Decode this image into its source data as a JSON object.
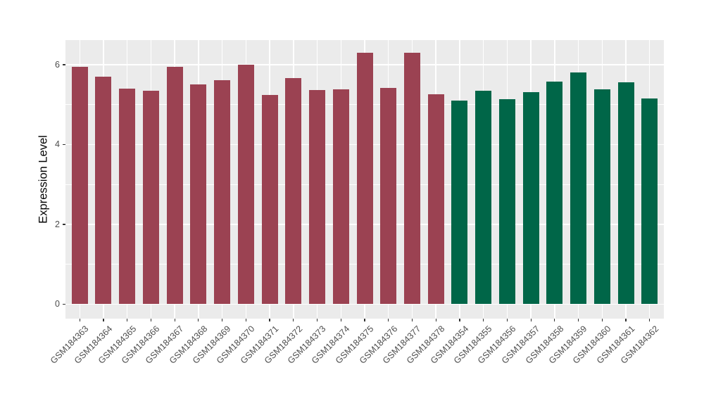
{
  "chart_data": {
    "type": "bar",
    "title": "",
    "xlabel": "",
    "ylabel": "Expression Level",
    "categories": [
      "GSM184363",
      "GSM184364",
      "GSM184365",
      "GSM184366",
      "GSM184367",
      "GSM184368",
      "GSM184369",
      "GSM184370",
      "GSM184371",
      "GSM184372",
      "GSM184373",
      "GSM184374",
      "GSM184375",
      "GSM184376",
      "GSM184377",
      "GSM184378",
      "GSM184354",
      "GSM184355",
      "GSM184356",
      "GSM184357",
      "GSM184358",
      "GSM184359",
      "GSM184360",
      "GSM184361",
      "GSM184362"
    ],
    "values": [
      5.95,
      5.7,
      5.4,
      5.35,
      5.95,
      5.5,
      5.62,
      6.0,
      5.24,
      5.67,
      5.37,
      5.38,
      6.3,
      5.42,
      6.3,
      5.26,
      5.1,
      5.34,
      5.14,
      5.31,
      5.57,
      5.81,
      5.39,
      5.56,
      5.16
    ],
    "groups": [
      "maroon",
      "maroon",
      "maroon",
      "maroon",
      "maroon",
      "maroon",
      "maroon",
      "maroon",
      "maroon",
      "maroon",
      "maroon",
      "maroon",
      "maroon",
      "maroon",
      "maroon",
      "maroon",
      "green",
      "green",
      "green",
      "green",
      "green",
      "green",
      "green",
      "green",
      "green"
    ],
    "group_colors": {
      "maroon": "#9B4252",
      "green": "#006648"
    },
    "series": [
      {
        "name": "GSM184363-GSM184378",
        "color": "#9B4252",
        "count": 16
      },
      {
        "name": "GSM184354-GSM184362",
        "color": "#006648",
        "count": 9
      }
    ],
    "yticks": [
      0,
      2,
      4,
      6
    ],
    "yticks_minor": [
      1,
      3,
      5
    ],
    "ylim": [
      -0.33,
      6.62
    ],
    "grid": "major-and-minor",
    "legend": "none",
    "x_label_rotation_deg": 45,
    "panel_background": "#EBEBEB",
    "grid_color": "#FFFFFF",
    "axis_text_color": "#4D4D4D",
    "axis_title_color": "#000000",
    "tick_mark_color": "#333333"
  }
}
